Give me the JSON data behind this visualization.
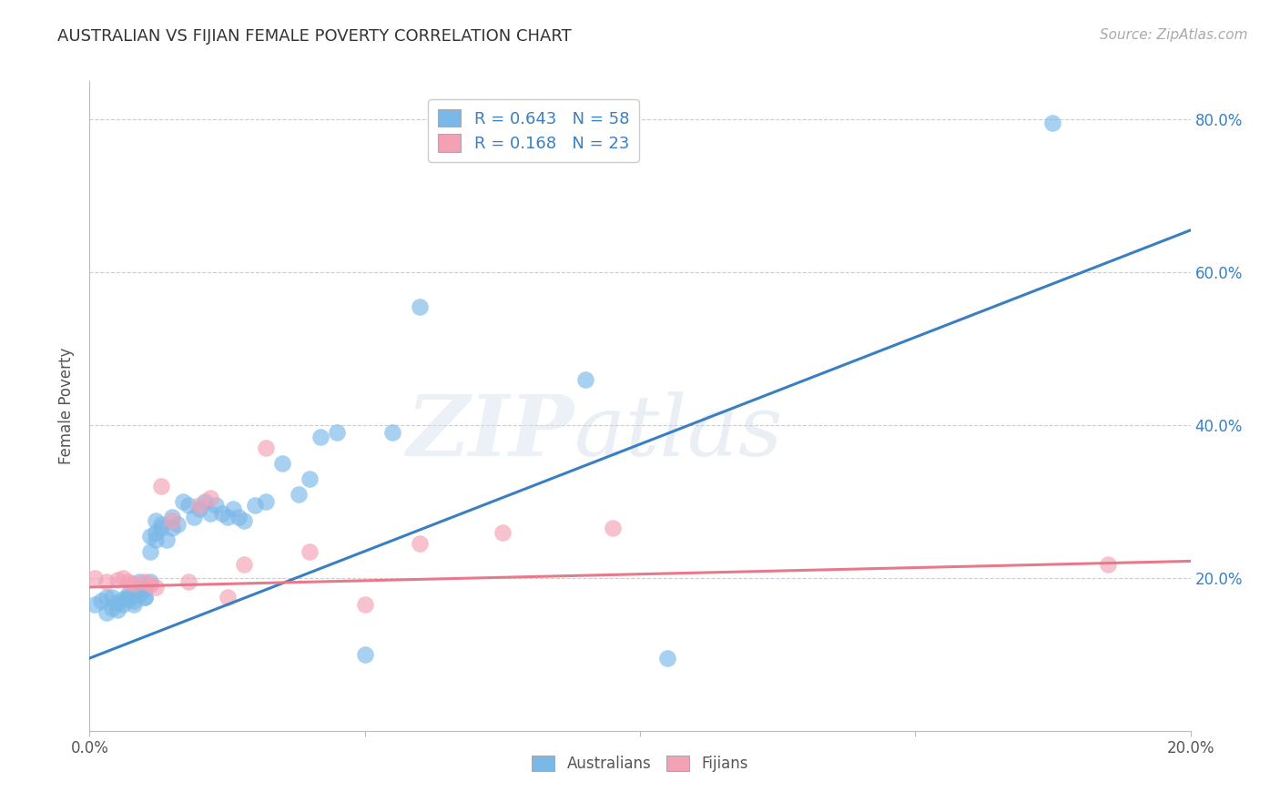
{
  "title": "AUSTRALIAN VS FIJIAN FEMALE POVERTY CORRELATION CHART",
  "source": "Source: ZipAtlas.com",
  "ylabel": "Female Poverty",
  "xlim": [
    0.0,
    0.2
  ],
  "ylim": [
    0.0,
    0.85
  ],
  "ytick_labels": [
    "20.0%",
    "40.0%",
    "60.0%",
    "80.0%"
  ],
  "ytick_values": [
    0.2,
    0.4,
    0.6,
    0.8
  ],
  "xtick_labels": [
    "0.0%",
    "",
    "",
    "",
    "20.0%"
  ],
  "xtick_values": [
    0.0,
    0.05,
    0.1,
    0.15,
    0.2
  ],
  "legend_r_blue": "R = 0.643",
  "legend_n_blue": "N = 58",
  "legend_r_pink": "R = 0.168",
  "legend_n_pink": "N = 23",
  "legend_label_australians": "Australians",
  "legend_label_fijians": "Fijians",
  "australian_color": "#7ab8e8",
  "fijian_color": "#f4a0b5",
  "regression_blue": "#3a7fc1",
  "regression_pink": "#e8798a",
  "watermark_zip": "ZIP",
  "watermark_atlas": "atlas",
  "background_color": "#ffffff",
  "blue_line_x": [
    0.0,
    0.2
  ],
  "blue_line_y": [
    0.095,
    0.655
  ],
  "pink_line_x": [
    0.0,
    0.2
  ],
  "pink_line_y": [
    0.188,
    0.222
  ],
  "au_x": [
    0.001,
    0.002,
    0.003,
    0.003,
    0.004,
    0.004,
    0.005,
    0.005,
    0.006,
    0.006,
    0.007,
    0.007,
    0.007,
    0.008,
    0.008,
    0.008,
    0.009,
    0.009,
    0.01,
    0.01,
    0.01,
    0.011,
    0.011,
    0.011,
    0.012,
    0.012,
    0.012,
    0.013,
    0.013,
    0.014,
    0.015,
    0.015,
    0.016,
    0.017,
    0.018,
    0.019,
    0.02,
    0.021,
    0.022,
    0.023,
    0.024,
    0.025,
    0.026,
    0.027,
    0.028,
    0.03,
    0.032,
    0.035,
    0.038,
    0.04,
    0.042,
    0.045,
    0.05,
    0.055,
    0.06,
    0.09,
    0.105,
    0.175
  ],
  "au_y": [
    0.165,
    0.17,
    0.155,
    0.175,
    0.16,
    0.175,
    0.158,
    0.168,
    0.172,
    0.165,
    0.175,
    0.18,
    0.172,
    0.17,
    0.178,
    0.165,
    0.178,
    0.195,
    0.175,
    0.185,
    0.175,
    0.195,
    0.255,
    0.235,
    0.275,
    0.26,
    0.25,
    0.265,
    0.27,
    0.25,
    0.28,
    0.265,
    0.27,
    0.3,
    0.295,
    0.28,
    0.29,
    0.3,
    0.285,
    0.295,
    0.285,
    0.28,
    0.29,
    0.28,
    0.275,
    0.295,
    0.3,
    0.35,
    0.31,
    0.33,
    0.385,
    0.39,
    0.1,
    0.39,
    0.555,
    0.46,
    0.095,
    0.795
  ],
  "fj_x": [
    0.001,
    0.003,
    0.005,
    0.006,
    0.007,
    0.008,
    0.01,
    0.011,
    0.012,
    0.013,
    0.015,
    0.018,
    0.02,
    0.022,
    0.025,
    0.028,
    0.032,
    0.04,
    0.05,
    0.06,
    0.075,
    0.095,
    0.185
  ],
  "fj_y": [
    0.2,
    0.195,
    0.198,
    0.2,
    0.195,
    0.193,
    0.195,
    0.192,
    0.188,
    0.32,
    0.275,
    0.195,
    0.295,
    0.305,
    0.175,
    0.218,
    0.37,
    0.235,
    0.165,
    0.245,
    0.26,
    0.265,
    0.218
  ]
}
